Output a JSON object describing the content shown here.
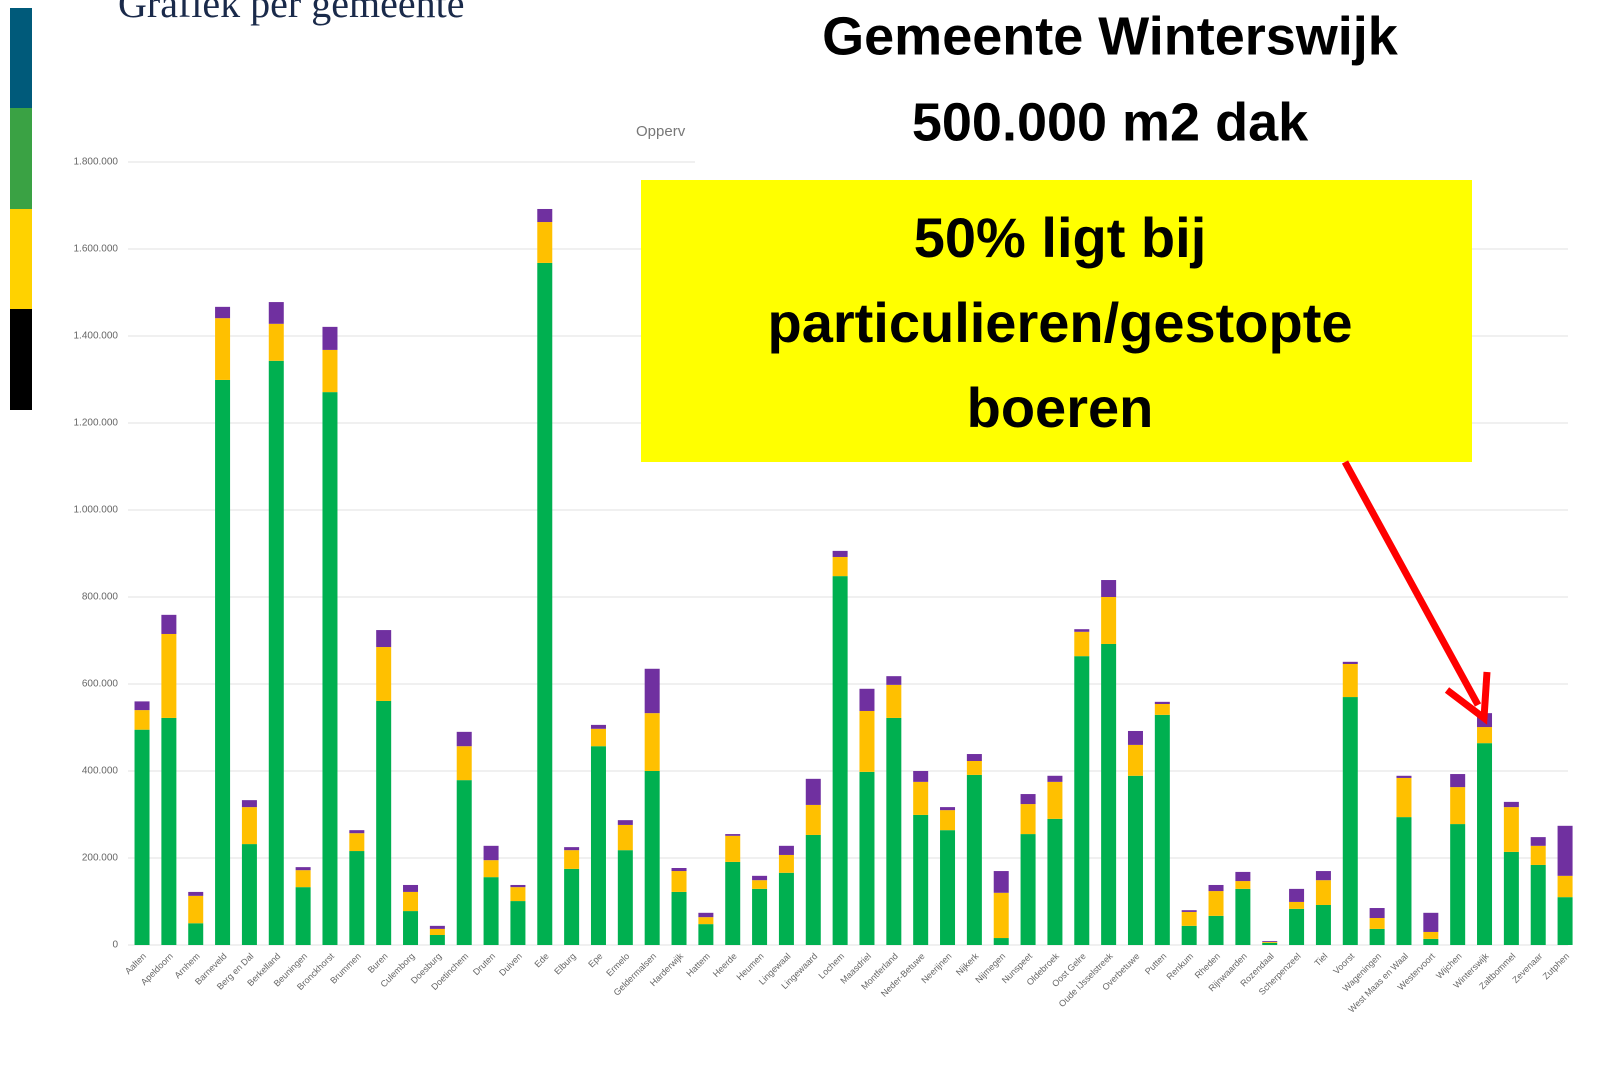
{
  "header": {
    "title": "Grafiek per gemeente"
  },
  "annotations": {
    "heading": [
      "Gemeente Winterswijk",
      "500.000 m2 dak"
    ],
    "callout": [
      "50% ligt bij",
      "particulieren/gestopte",
      "boeren"
    ]
  },
  "chart_data": {
    "type": "bar",
    "stacked": true,
    "title": "Opperv",
    "categories": [
      "Aalten",
      "Apeldoorn",
      "Arnhem",
      "Barneveld",
      "Berg en Dal",
      "Berkelland",
      "Beuningen",
      "Bronckhorst",
      "Brummen",
      "Buren",
      "Culemborg",
      "Doesburg",
      "Doetinchem",
      "Druten",
      "Duiven",
      "Ede",
      "Elburg",
      "Epe",
      "Ermelo",
      "Geldermalsen",
      "Harderwijk",
      "Hattem",
      "Heerde",
      "Heumen",
      "Lingewaal",
      "Lingewaard",
      "Lochem",
      "Maasdriel",
      "Montferland",
      "Neder-Betuwe",
      "Neerijnen",
      "Nijkerk",
      "Nijmegen",
      "Nunspeet",
      "Oldebroek",
      "Oost Gelre",
      "Oude IJsselstreek",
      "Overbetuwe",
      "Putten",
      "Renkum",
      "Rheden",
      "Rijnwaarden",
      "Rozendaal",
      "Scherpenzeel",
      "Tiel",
      "Voorst",
      "Wageningen",
      "West Maas en Waal",
      "Westervoort",
      "Wijchen",
      "Winterswijk",
      "Zaltbommel",
      "Zevenaar",
      "Zutphen"
    ],
    "series": [
      {
        "color": "#00b050",
        "values": [
          495000,
          522000,
          50000,
          1299000,
          232000,
          1343000,
          133000,
          1271000,
          216000,
          561000,
          78000,
          23000,
          379000,
          156000,
          101000,
          1568000,
          175000,
          457000,
          218000,
          400000,
          122000,
          48000,
          191000,
          129000,
          166000,
          253000,
          848000,
          398000,
          522000,
          299000,
          264000,
          391000,
          16000,
          255000,
          290000,
          664000,
          692000,
          389000,
          529000,
          44000,
          67000,
          129000,
          5000,
          83000,
          92000,
          570000,
          37000,
          294000,
          14000,
          278000,
          464000,
          214000,
          184000,
          110000
        ]
      },
      {
        "color": "#ffc000",
        "values": [
          45000,
          193000,
          63000,
          142000,
          85000,
          85000,
          39000,
          97000,
          41000,
          124000,
          44000,
          14000,
          78000,
          39000,
          32000,
          94000,
          43000,
          40000,
          58000,
          133000,
          48000,
          16000,
          60000,
          20000,
          41000,
          69000,
          44000,
          140000,
          76000,
          76000,
          46000,
          32000,
          104000,
          69000,
          85000,
          56000,
          108000,
          71000,
          25000,
          32000,
          57000,
          18000,
          2000,
          16000,
          57000,
          76000,
          25000,
          90000,
          16000,
          85000,
          37000,
          103000,
          44000,
          49000
        ]
      },
      {
        "color": "#7030a0",
        "values": [
          20000,
          44000,
          9000,
          26000,
          16000,
          50000,
          7000,
          53000,
          7000,
          39000,
          16000,
          7000,
          33000,
          33000,
          5000,
          30000,
          7000,
          9000,
          11000,
          102000,
          7000,
          10000,
          4000,
          10000,
          21000,
          60000,
          14000,
          51000,
          20000,
          25000,
          7000,
          16000,
          50000,
          23000,
          14000,
          6000,
          39000,
          32000,
          5000,
          4000,
          14000,
          21000,
          2000,
          30000,
          21000,
          5000,
          23000,
          5000,
          44000,
          30000,
          32000,
          12000,
          20000,
          115000
        ]
      }
    ],
    "ylim": [
      0,
      1800000
    ],
    "yticks": [
      0,
      {
        "value": 200000,
        "label": "200.000"
      },
      {
        "value": 400000,
        "label": "400.000"
      },
      {
        "value": 600000,
        "label": "600.000"
      },
      {
        "value": 800000,
        "label": "800.000"
      },
      {
        "value": 1000000,
        "label": "1.000.000"
      },
      {
        "value": 1200000,
        "label": "1.200.000"
      },
      {
        "value": 1400000,
        "label": "1.400.000"
      },
      {
        "value": 1600000,
        "label": "1.600.000"
      },
      {
        "value": 1800000,
        "label": "1.800.000"
      }
    ],
    "grid": true
  }
}
